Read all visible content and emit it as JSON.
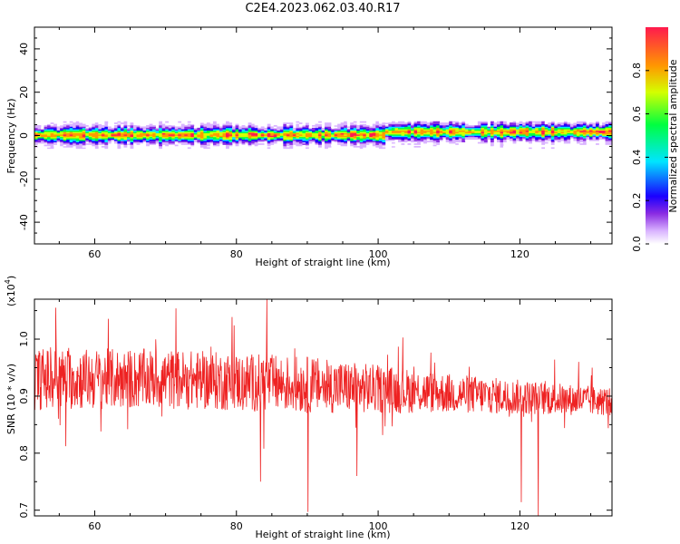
{
  "title": "C2E4.2023.062.03.40.R17",
  "chart_data": [
    {
      "type": "heatmap",
      "xlabel": "Height of straight line (km)",
      "ylabel": "Frequency (Hz)",
      "xlim": [
        51.5,
        133
      ],
      "ylim": [
        -50,
        50
      ],
      "x_ticks": [
        60,
        80,
        100,
        120
      ],
      "y_ticks": [
        -40,
        -20,
        0,
        20,
        40
      ],
      "y_tick_labels": [
        "-40",
        "-20",
        "0",
        "20",
        "40"
      ],
      "grid": false,
      "description_band": {
        "center_frequency": 0,
        "half_width_hz": 3,
        "step_up_from_km": 101,
        "step_up_frequency": 1.5
      },
      "colorbar": {
        "label": "Normalized spectral amplitude",
        "range": [
          0,
          1
        ],
        "ticks": [
          0.0,
          0.2,
          0.4,
          0.6,
          0.8
        ],
        "tick_labels": [
          "0.0",
          "0.2",
          "0.4",
          "0.6",
          "0.8"
        ],
        "colors": [
          "#ffffff",
          "#d9b3ff",
          "#8a2be2",
          "#1a00ff",
          "#00e5ff",
          "#00ff40",
          "#d4ff00",
          "#ff9900",
          "#ff1a4d"
        ]
      }
    },
    {
      "type": "line",
      "xlabel": "Height of straight line (km)",
      "ylabel": "SNR (10 * v/v)",
      "scale_label": "(x10",
      "scale_exp": "4",
      "scale_close": ")",
      "xlim": [
        51.5,
        133
      ],
      "ylim": [
        0.69,
        1.07
      ],
      "x_ticks": [
        60,
        80,
        100,
        120
      ],
      "y_ticks": [
        0.7,
        0.8,
        0.9,
        1.0
      ],
      "y_tick_labels": [
        "0.7",
        "0.8",
        "0.9",
        "1.0"
      ],
      "color": "#ee2222",
      "series": [
        {
          "x_start": 51.5,
          "x_end": 133,
          "mean_trend": [
            [
              51.5,
              0.93
            ],
            [
              70,
              0.93
            ],
            [
              90,
              0.92
            ],
            [
              110,
              0.905
            ],
            [
              133,
              0.89
            ]
          ],
          "spread_trend": [
            [
              51.5,
              0.055
            ],
            [
              90,
              0.05
            ],
            [
              110,
              0.035
            ],
            [
              133,
              0.025
            ]
          ],
          "notable_points": [
            [
              84.3,
              1.07
            ],
            [
              54.5,
              1.055
            ],
            [
              90.1,
              0.697
            ],
            [
              95.6,
              0.885
            ],
            [
              120.2,
              0.714
            ],
            [
              122.6,
              0.69
            ],
            [
              97.0,
              0.76
            ],
            [
              83.4,
              0.75
            ],
            [
              128.3,
              0.96
            ],
            [
              130.2,
              0.95
            ]
          ]
        }
      ]
    }
  ]
}
